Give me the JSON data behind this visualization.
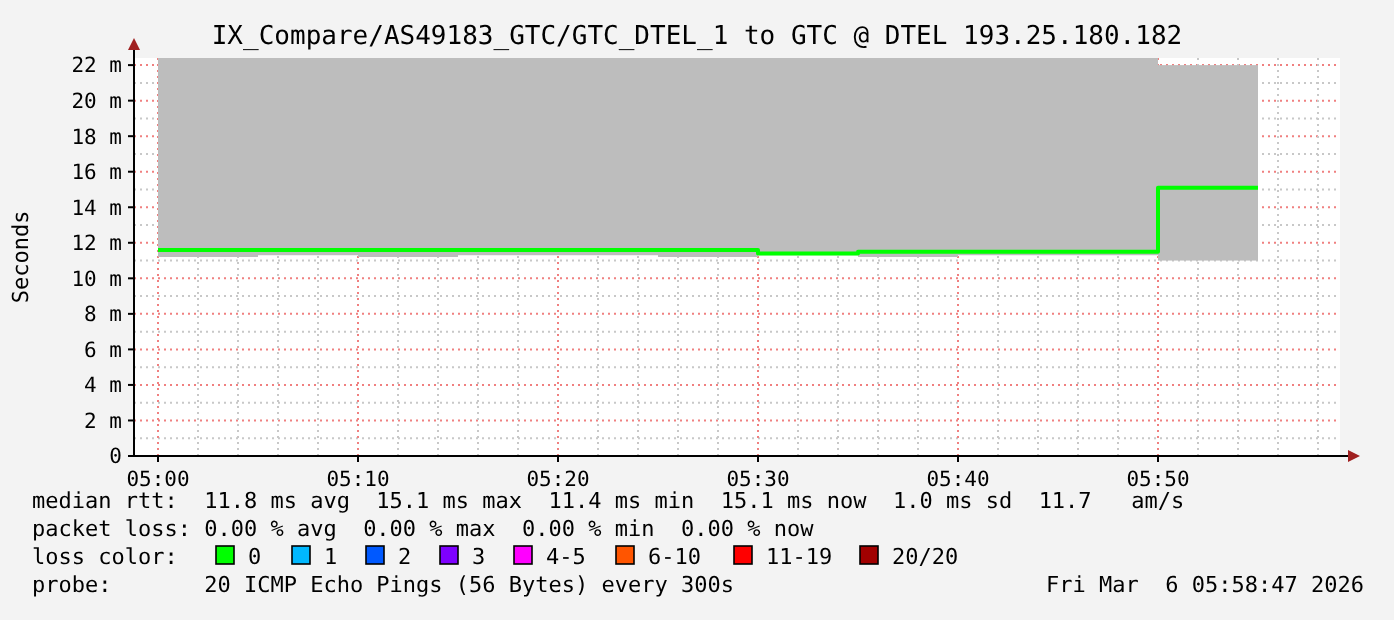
{
  "chart_data": {
    "type": "bar",
    "title": "IX_Compare/AS49183_GTC/GTC_DTEL_1 to GTC @ DTEL 193.25.180.182",
    "ylabel": "Seconds",
    "x": [
      5.041667,
      5.125,
      5.208333,
      5.291667,
      5.375,
      5.458333,
      5.541667,
      5.625,
      5.708333,
      5.791667,
      5.875
    ],
    "series": [
      {
        "color": "#bdbdbd",
        "base": [
          11.2,
          11.3,
          11.2,
          11.3,
          11.3,
          11.2,
          11.3,
          11.2,
          11.3,
          11.3,
          11.0
        ],
        "values": [
          11.2,
          11.1,
          11.2,
          11.1,
          11.1,
          11.2,
          11.1,
          11.2,
          11.1,
          11.1,
          11.0
        ]
      },
      {
        "type": "step",
        "color": "#00ff00",
        "x": [
          5,
          5.083333,
          5.166667,
          5.25,
          5.333333,
          5.416667,
          5.5,
          5.583333,
          5.666667,
          5.75,
          5.833333,
          5.916667
        ],
        "values": [
          11.6,
          11.6,
          11.6,
          11.6,
          11.6,
          11.6,
          11.4,
          11.5,
          11.5,
          11.5,
          15.1,
          15.1
        ]
      }
    ],
    "xlim": [
      4.98,
      5.985
    ],
    "ylim": [
      0,
      22.4
    ],
    "xticks": [
      {
        "value": 5,
        "label": "05:00"
      },
      {
        "value": 5.166667,
        "label": "05:10"
      },
      {
        "value": 5.333333,
        "label": "05:20"
      },
      {
        "value": 5.5,
        "label": "05:30"
      },
      {
        "value": 5.666667,
        "label": "05:40"
      },
      {
        "value": 5.833333,
        "label": "05:50"
      }
    ],
    "yticks": [
      0,
      {
        "value": 2,
        "label": "2 m"
      },
      {
        "value": 4,
        "label": "4 m"
      },
      {
        "value": 6,
        "label": "6 m"
      },
      {
        "value": 8,
        "label": "8 m"
      },
      {
        "value": 10,
        "label": "10 m"
      },
      {
        "value": 12,
        "label": "12 m"
      },
      {
        "value": 14,
        "label": "14 m"
      },
      {
        "value": 16,
        "label": "16 m"
      },
      {
        "value": 18,
        "label": "18 m"
      },
      {
        "value": 20,
        "label": "20 m"
      },
      {
        "value": 22,
        "label": "22 m"
      }
    ],
    "grid": true,
    "annotations": [
      "median rtt:  11.8 ms avg  15.1 ms max  11.4 ms min  15.1 ms now  1.0 ms sd  11.7   am/s",
      "packet loss: 0.00 % avg  0.00 % max  0.00 % min  0.00 % now",
      "loss color:",
      "0",
      "1",
      "2",
      "3",
      "4-5",
      "6-10",
      "11-19",
      "20/20",
      "probe:       20 ICMP Echo Pings (56 Bytes) every 300s",
      "Fri Mar  6 05:58:47 2026"
    ]
  }
}
